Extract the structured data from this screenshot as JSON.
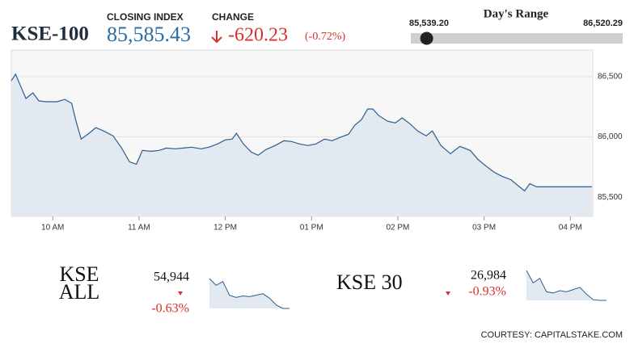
{
  "header": {
    "index_name": "KSE-100",
    "closing_label": "CLOSING INDEX",
    "closing": {
      "value": 85585.43,
      "label": "85,585.43"
    },
    "change_label": "CHANGE",
    "change_value": "-620.23",
    "change_pct": "(-0.72%)",
    "range_title": "Day's Range",
    "range_low": {
      "value": 85539.2,
      "label": "85,539.20"
    },
    "range_high": {
      "value": 86520.29,
      "label": "86,520.29"
    }
  },
  "chart_data": [
    {
      "type": "line",
      "color": "#2f5d8c",
      "fill": "#e3e9f1",
      "x": [
        9.52,
        9.57,
        9.62,
        9.69,
        9.77,
        9.84,
        9.93,
        10.05,
        10.14,
        10.22,
        10.27,
        10.33,
        10.42,
        10.5,
        10.59,
        10.7,
        10.8,
        10.89,
        10.97,
        11.04,
        11.14,
        11.23,
        11.32,
        11.42,
        11.51,
        11.61,
        11.72,
        11.81,
        11.91,
        12.0,
        12.08,
        12.13,
        12.21,
        12.3,
        12.38,
        12.47,
        12.58,
        12.68,
        12.77,
        12.86,
        12.96,
        13.05,
        13.15,
        13.24,
        13.33,
        13.43,
        13.5,
        13.58,
        13.65,
        13.71,
        13.78,
        13.88,
        13.97,
        14.05,
        14.14,
        14.23,
        14.33,
        14.4,
        14.5,
        14.61,
        14.72,
        14.84,
        14.93,
        15.02,
        15.12,
        15.21,
        15.31,
        15.4,
        15.47,
        15.53,
        15.61,
        16.25
      ],
      "values": [
        86466,
        86520,
        86433,
        86318,
        86365,
        86298,
        86291,
        86291,
        86311,
        86278,
        86130,
        85981,
        86029,
        86076,
        86049,
        86008,
        85907,
        85793,
        85773,
        85887,
        85880,
        85887,
        85907,
        85901,
        85907,
        85914,
        85901,
        85914,
        85941,
        85975,
        85981,
        86029,
        85941,
        85874,
        85847,
        85894,
        85928,
        85968,
        85961,
        85941,
        85928,
        85941,
        85981,
        85968,
        85995,
        86022,
        86096,
        86143,
        86231,
        86231,
        86177,
        86130,
        86116,
        86157,
        86109,
        86049,
        86008,
        86049,
        85928,
        85860,
        85921,
        85887,
        85813,
        85759,
        85705,
        85672,
        85645,
        85591,
        85551,
        85611,
        85585,
        85585
      ],
      "xlim": [
        9.52,
        16.26
      ],
      "xticks": [
        {
          "value": 10,
          "label": "10 AM"
        },
        {
          "value": 11,
          "label": "11 AM"
        },
        {
          "value": 12,
          "label": "12 PM"
        },
        {
          "value": 13,
          "label": "01 PM"
        },
        {
          "value": 14,
          "label": "02 PM"
        },
        {
          "value": 15,
          "label": "03 PM"
        },
        {
          "value": 16,
          "label": "04 PM"
        }
      ],
      "ylim": [
        85340,
        86720
      ],
      "yticks": [
        {
          "value": 85500,
          "label": "85,500"
        },
        {
          "value": 86000,
          "label": "86,000"
        },
        {
          "value": 86500,
          "label": "86,500"
        }
      ],
      "grid": true
    },
    {
      "type": "line",
      "color": "#2f5d8c",
      "fill": "#e3e9f1",
      "values": [
        55340,
        55250,
        55300,
        55120,
        55090,
        55110,
        55100,
        55120,
        55140,
        55080,
        54990,
        54944,
        54944
      ]
    },
    {
      "type": "line",
      "color": "#2f5d8c",
      "fill": "#e3e9f1",
      "values": [
        27250,
        27140,
        27180,
        27060,
        27050,
        27070,
        27060,
        27080,
        27100,
        27040,
        26990,
        26984,
        26984
      ]
    }
  ],
  "sub_indices": [
    {
      "name": "KSE ALL",
      "value": "54,944",
      "change": "-0.63%"
    },
    {
      "name": "KSE 30",
      "value": "26,984",
      "change": "-0.93%"
    }
  ],
  "footer": "COURTESY: CAPITALSTAKE.COM"
}
